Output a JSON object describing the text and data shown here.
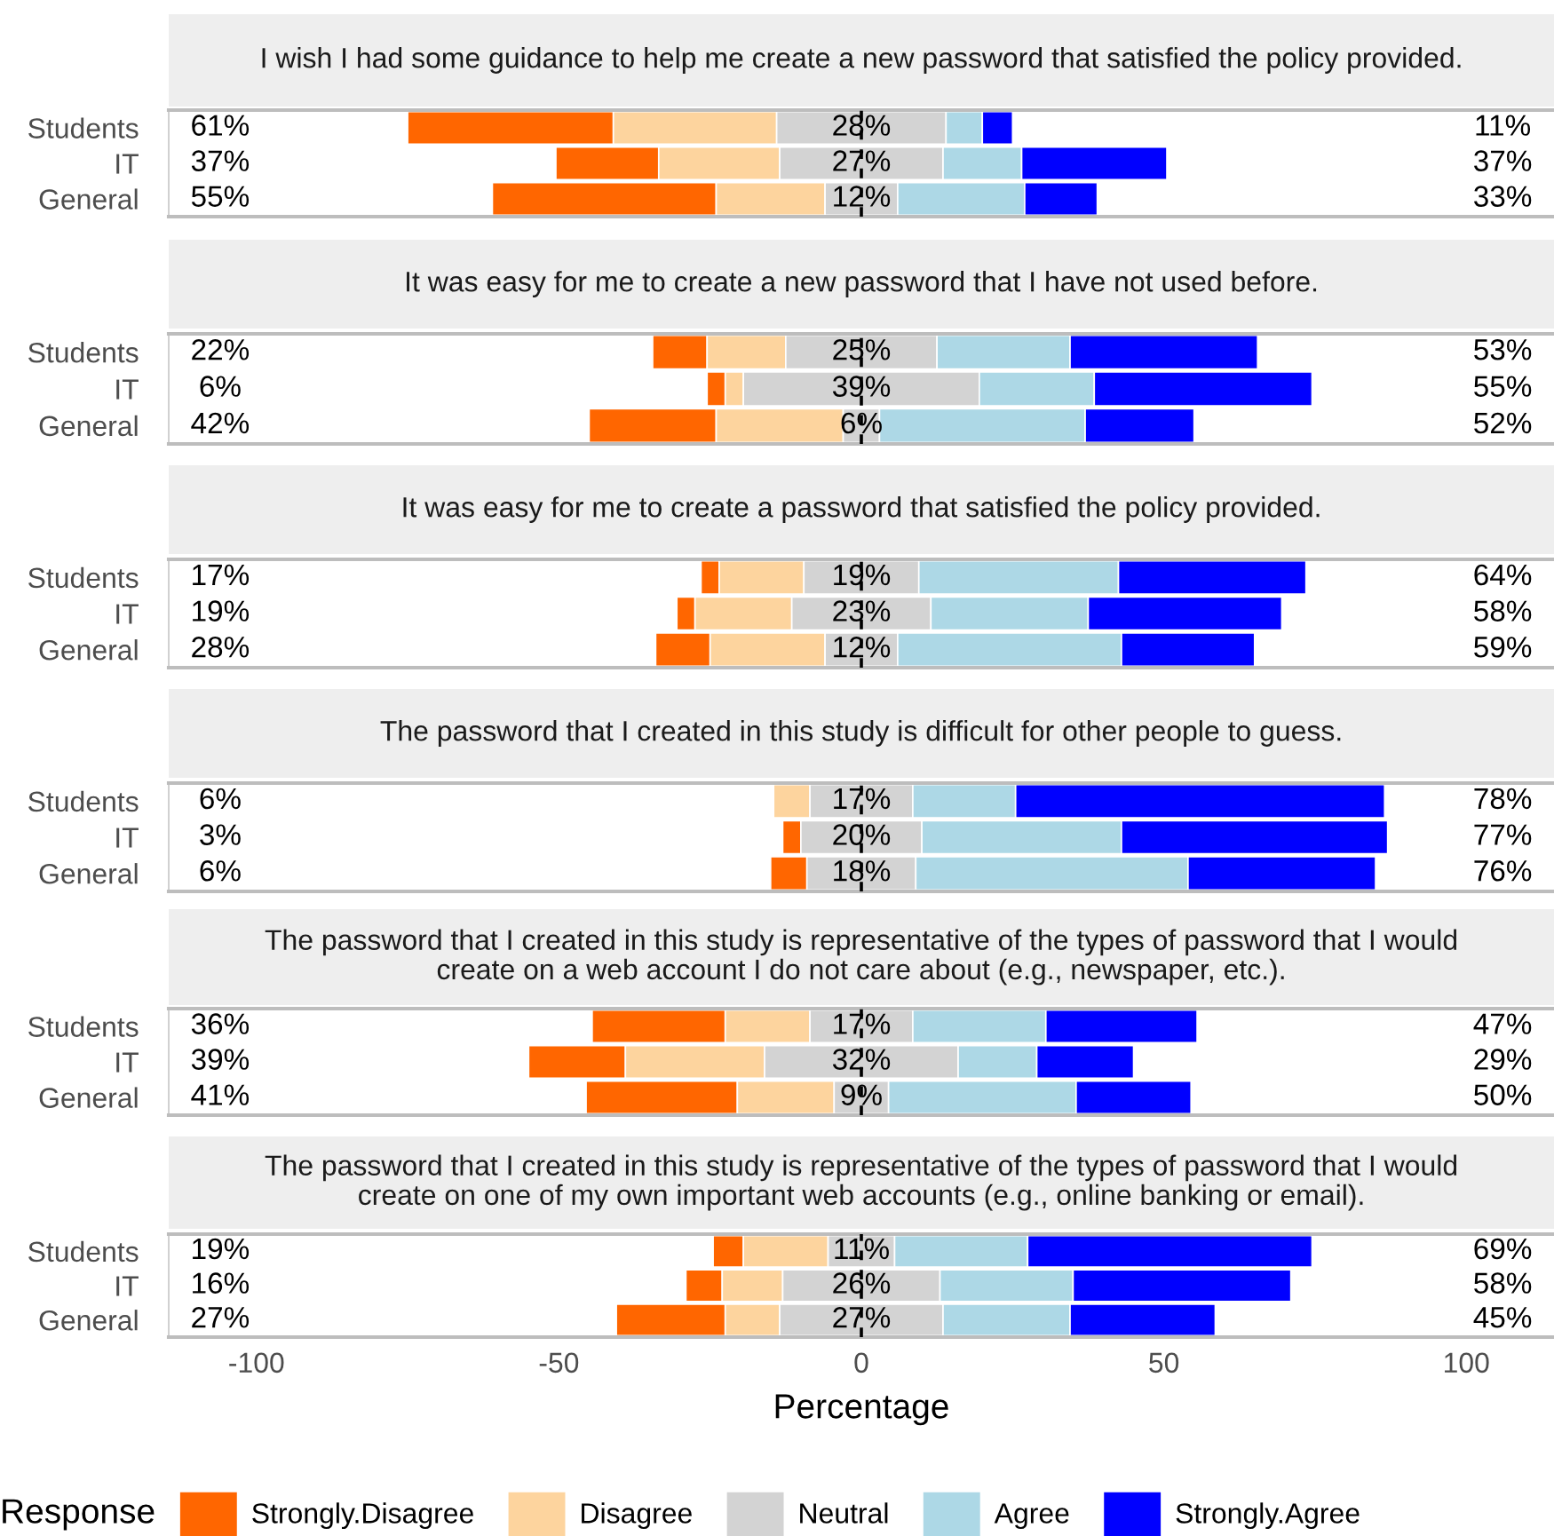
{
  "chart_data": [
    {
      "type": "bar",
      "orientation": "horizontal",
      "title": "I wish I had some guidance to help me create a new password that satisfied the policy provided.",
      "categories": [
        "Students",
        "IT",
        "General"
      ],
      "xlim": [
        -114.5,
        114.5
      ],
      "xticks": [
        -100,
        -50,
        0,
        50,
        100
      ],
      "tick_labels": "y",
      "series": [
        {
          "color": "#ff6600",
          "base": [
            -75,
            -50.5,
            -61
          ],
          "values": [
            34,
            17,
            37
          ]
        },
        {
          "color": "#fdd49e",
          "base": [
            -41,
            -33.5,
            -24
          ],
          "values": [
            27,
            20,
            18
          ]
        },
        {
          "color": "#d3d3d3",
          "base": [
            -14,
            -13.5,
            -6
          ],
          "values": [
            28,
            27,
            12
          ]
        },
        {
          "color": "#add8e6",
          "base": [
            14,
            13.5,
            6
          ],
          "values": [
            6,
            13,
            21
          ]
        },
        {
          "color": "#0000ff",
          "base": [
            20,
            26.5,
            27
          ],
          "values": [
            5,
            24,
            12
          ]
        }
      ],
      "ref_lines": [
        {
          "axis": "x",
          "value": 0,
          "color": "#000000",
          "line_style": "dashed"
        }
      ],
      "annotations": [
        "61%",
        "28%",
        "11%",
        "37%",
        "27%",
        "37%",
        "55%",
        "12%",
        "33%"
      ]
    },
    {
      "type": "bar",
      "orientation": "horizontal",
      "title": "It was easy for me to create a new password that I have not used before.",
      "categories": [
        "Students",
        "IT",
        "General"
      ],
      "xlim": [
        -114.5,
        114.5
      ],
      "xticks": [
        -100,
        -50,
        0,
        50,
        100
      ],
      "tick_labels": "y",
      "series": [
        {
          "color": "#ff6600",
          "base": [
            -34.5,
            -25.5,
            -45
          ],
          "values": [
            9,
            3,
            21
          ]
        },
        {
          "color": "#fdd49e",
          "base": [
            -25.5,
            -22.5,
            -24
          ],
          "values": [
            13,
            3,
            21
          ]
        },
        {
          "color": "#d3d3d3",
          "base": [
            -12.5,
            -19.5,
            -3
          ],
          "values": [
            25,
            39,
            6
          ]
        },
        {
          "color": "#add8e6",
          "base": [
            12.5,
            19.5,
            3
          ],
          "values": [
            22,
            19,
            34
          ]
        },
        {
          "color": "#0000ff",
          "base": [
            34.5,
            38.5,
            37
          ],
          "values": [
            31,
            36,
            18
          ]
        }
      ],
      "ref_lines": [
        {
          "axis": "x",
          "value": 0,
          "color": "#000000",
          "line_style": "dashed"
        }
      ],
      "annotations": [
        "22%",
        "25%",
        "53%",
        "6%",
        "39%",
        "55%",
        "42%",
        "6%",
        "52%"
      ]
    },
    {
      "type": "bar",
      "orientation": "horizontal",
      "title": "It was easy for me to create a password that satisfied the policy provided.",
      "categories": [
        "Students",
        "IT",
        "General"
      ],
      "xlim": [
        -114.5,
        114.5
      ],
      "xticks": [
        -100,
        -50,
        0,
        50,
        100
      ],
      "tick_labels": "y",
      "series": [
        {
          "color": "#ff6600",
          "base": [
            -26.5,
            -30.5,
            -34
          ],
          "values": [
            3,
            3,
            9
          ]
        },
        {
          "color": "#fdd49e",
          "base": [
            -23.5,
            -27.5,
            -25
          ],
          "values": [
            14,
            16,
            19
          ]
        },
        {
          "color": "#d3d3d3",
          "base": [
            -9.5,
            -11.5,
            -6
          ],
          "values": [
            19,
            23,
            12
          ]
        },
        {
          "color": "#add8e6",
          "base": [
            9.5,
            11.5,
            6
          ],
          "values": [
            33,
            26,
            37
          ]
        },
        {
          "color": "#0000ff",
          "base": [
            42.5,
            37.5,
            43
          ],
          "values": [
            31,
            32,
            22
          ]
        }
      ],
      "ref_lines": [
        {
          "axis": "x",
          "value": 0,
          "color": "#000000",
          "line_style": "dashed"
        }
      ],
      "annotations": [
        "17%",
        "19%",
        "64%",
        "19%",
        "23%",
        "58%",
        "28%",
        "12%",
        "59%"
      ]
    },
    {
      "type": "bar",
      "orientation": "horizontal",
      "title": "The password that I created in this study is difficult for other people to guess.",
      "categories": [
        "Students",
        "IT",
        "General"
      ],
      "xlim": [
        -114.5,
        114.5
      ],
      "xticks": [
        -100,
        -50,
        0,
        50,
        100
      ],
      "tick_labels": "y",
      "series": [
        {
          "color": "#ff6600",
          "base": [
            null,
            -13,
            -15
          ],
          "values": [
            null,
            3,
            6
          ]
        },
        {
          "color": "#fdd49e",
          "base": [
            -14.5,
            null,
            null
          ],
          "values": [
            6,
            null,
            null
          ]
        },
        {
          "color": "#d3d3d3",
          "base": [
            -8.5,
            -10,
            -9
          ],
          "values": [
            17,
            20,
            18
          ]
        },
        {
          "color": "#add8e6",
          "base": [
            8.5,
            10,
            9
          ],
          "values": [
            17,
            33,
            45
          ]
        },
        {
          "color": "#0000ff",
          "base": [
            25.5,
            43,
            54
          ],
          "values": [
            61,
            44,
            31
          ]
        }
      ],
      "ref_lines": [
        {
          "axis": "x",
          "value": 0,
          "color": "#000000",
          "line_style": "dashed"
        }
      ],
      "annotations": [
        "6%",
        "17%",
        "78%",
        "3%",
        "20%",
        "77%",
        "6%",
        "18%",
        "76%"
      ]
    },
    {
      "type": "bar",
      "orientation": "horizontal",
      "title": "The password that I created in this study is representative of the types of password that I would\ncreate on a web account I do not care about (e.g., newspaper, etc.).",
      "categories": [
        "Students",
        "IT",
        "General"
      ],
      "xlim": [
        -114.5,
        114.5
      ],
      "xticks": [
        -100,
        -50,
        0,
        50,
        100
      ],
      "tick_labels": "y",
      "series": [
        {
          "color": "#ff6600",
          "base": [
            -44.5,
            -55,
            -45.5
          ],
          "values": [
            22,
            16,
            25
          ]
        },
        {
          "color": "#fdd49e",
          "base": [
            -22.5,
            -39,
            -20.5
          ],
          "values": [
            14,
            23,
            16
          ]
        },
        {
          "color": "#d3d3d3",
          "base": [
            -8.5,
            -16,
            -4.5
          ],
          "values": [
            17,
            32,
            9
          ]
        },
        {
          "color": "#add8e6",
          "base": [
            8.5,
            16,
            4.5
          ],
          "values": [
            22,
            13,
            31
          ]
        },
        {
          "color": "#0000ff",
          "base": [
            30.5,
            29,
            35.5
          ],
          "values": [
            25,
            16,
            19
          ]
        }
      ],
      "ref_lines": [
        {
          "axis": "x",
          "value": 0,
          "color": "#000000",
          "line_style": "dashed"
        }
      ],
      "annotations": [
        "36%",
        "17%",
        "47%",
        "39%",
        "32%",
        "29%",
        "41%",
        "9%",
        "50%"
      ]
    },
    {
      "type": "bar",
      "orientation": "horizontal",
      "title": "The password that I created in this study is representative of the types of password that I would\ncreate on one of my own important web accounts (e.g., online banking or email).",
      "categories": [
        "Students",
        "IT",
        "General"
      ],
      "xlim": [
        -114.5,
        114.5
      ],
      "xticks": [
        -100,
        -50,
        0,
        50,
        100
      ],
      "xlabel": "Percentage",
      "legend": "bottom",
      "legend_title": "Response",
      "series": [
        {
          "name": "Strongly.Disagree",
          "color": "#ff6600",
          "base": [
            -24.5,
            -29,
            -40.5
          ],
          "values": [
            5,
            6,
            18
          ]
        },
        {
          "name": "Disagree",
          "color": "#fdd49e",
          "base": [
            -19.5,
            -23,
            -22.5
          ],
          "values": [
            14,
            10,
            9
          ]
        },
        {
          "name": "Neutral",
          "color": "#d3d3d3",
          "base": [
            -5.5,
            -13,
            -13.5
          ],
          "values": [
            11,
            26,
            27
          ]
        },
        {
          "name": "Agree",
          "color": "#add8e6",
          "base": [
            5.5,
            13,
            13.5
          ],
          "values": [
            22,
            22,
            21
          ]
        },
        {
          "name": "Strongly.Agree",
          "color": "#0000ff",
          "base": [
            27.5,
            35,
            34.5
          ],
          "values": [
            47,
            36,
            24
          ]
        }
      ],
      "ref_lines": [
        {
          "axis": "x",
          "value": 0,
          "color": "#000000",
          "line_style": "dashed"
        }
      ],
      "annotations": [
        "19%",
        "11%",
        "69%",
        "16%",
        "26%",
        "58%",
        "27%",
        "27%",
        "45%"
      ]
    }
  ]
}
